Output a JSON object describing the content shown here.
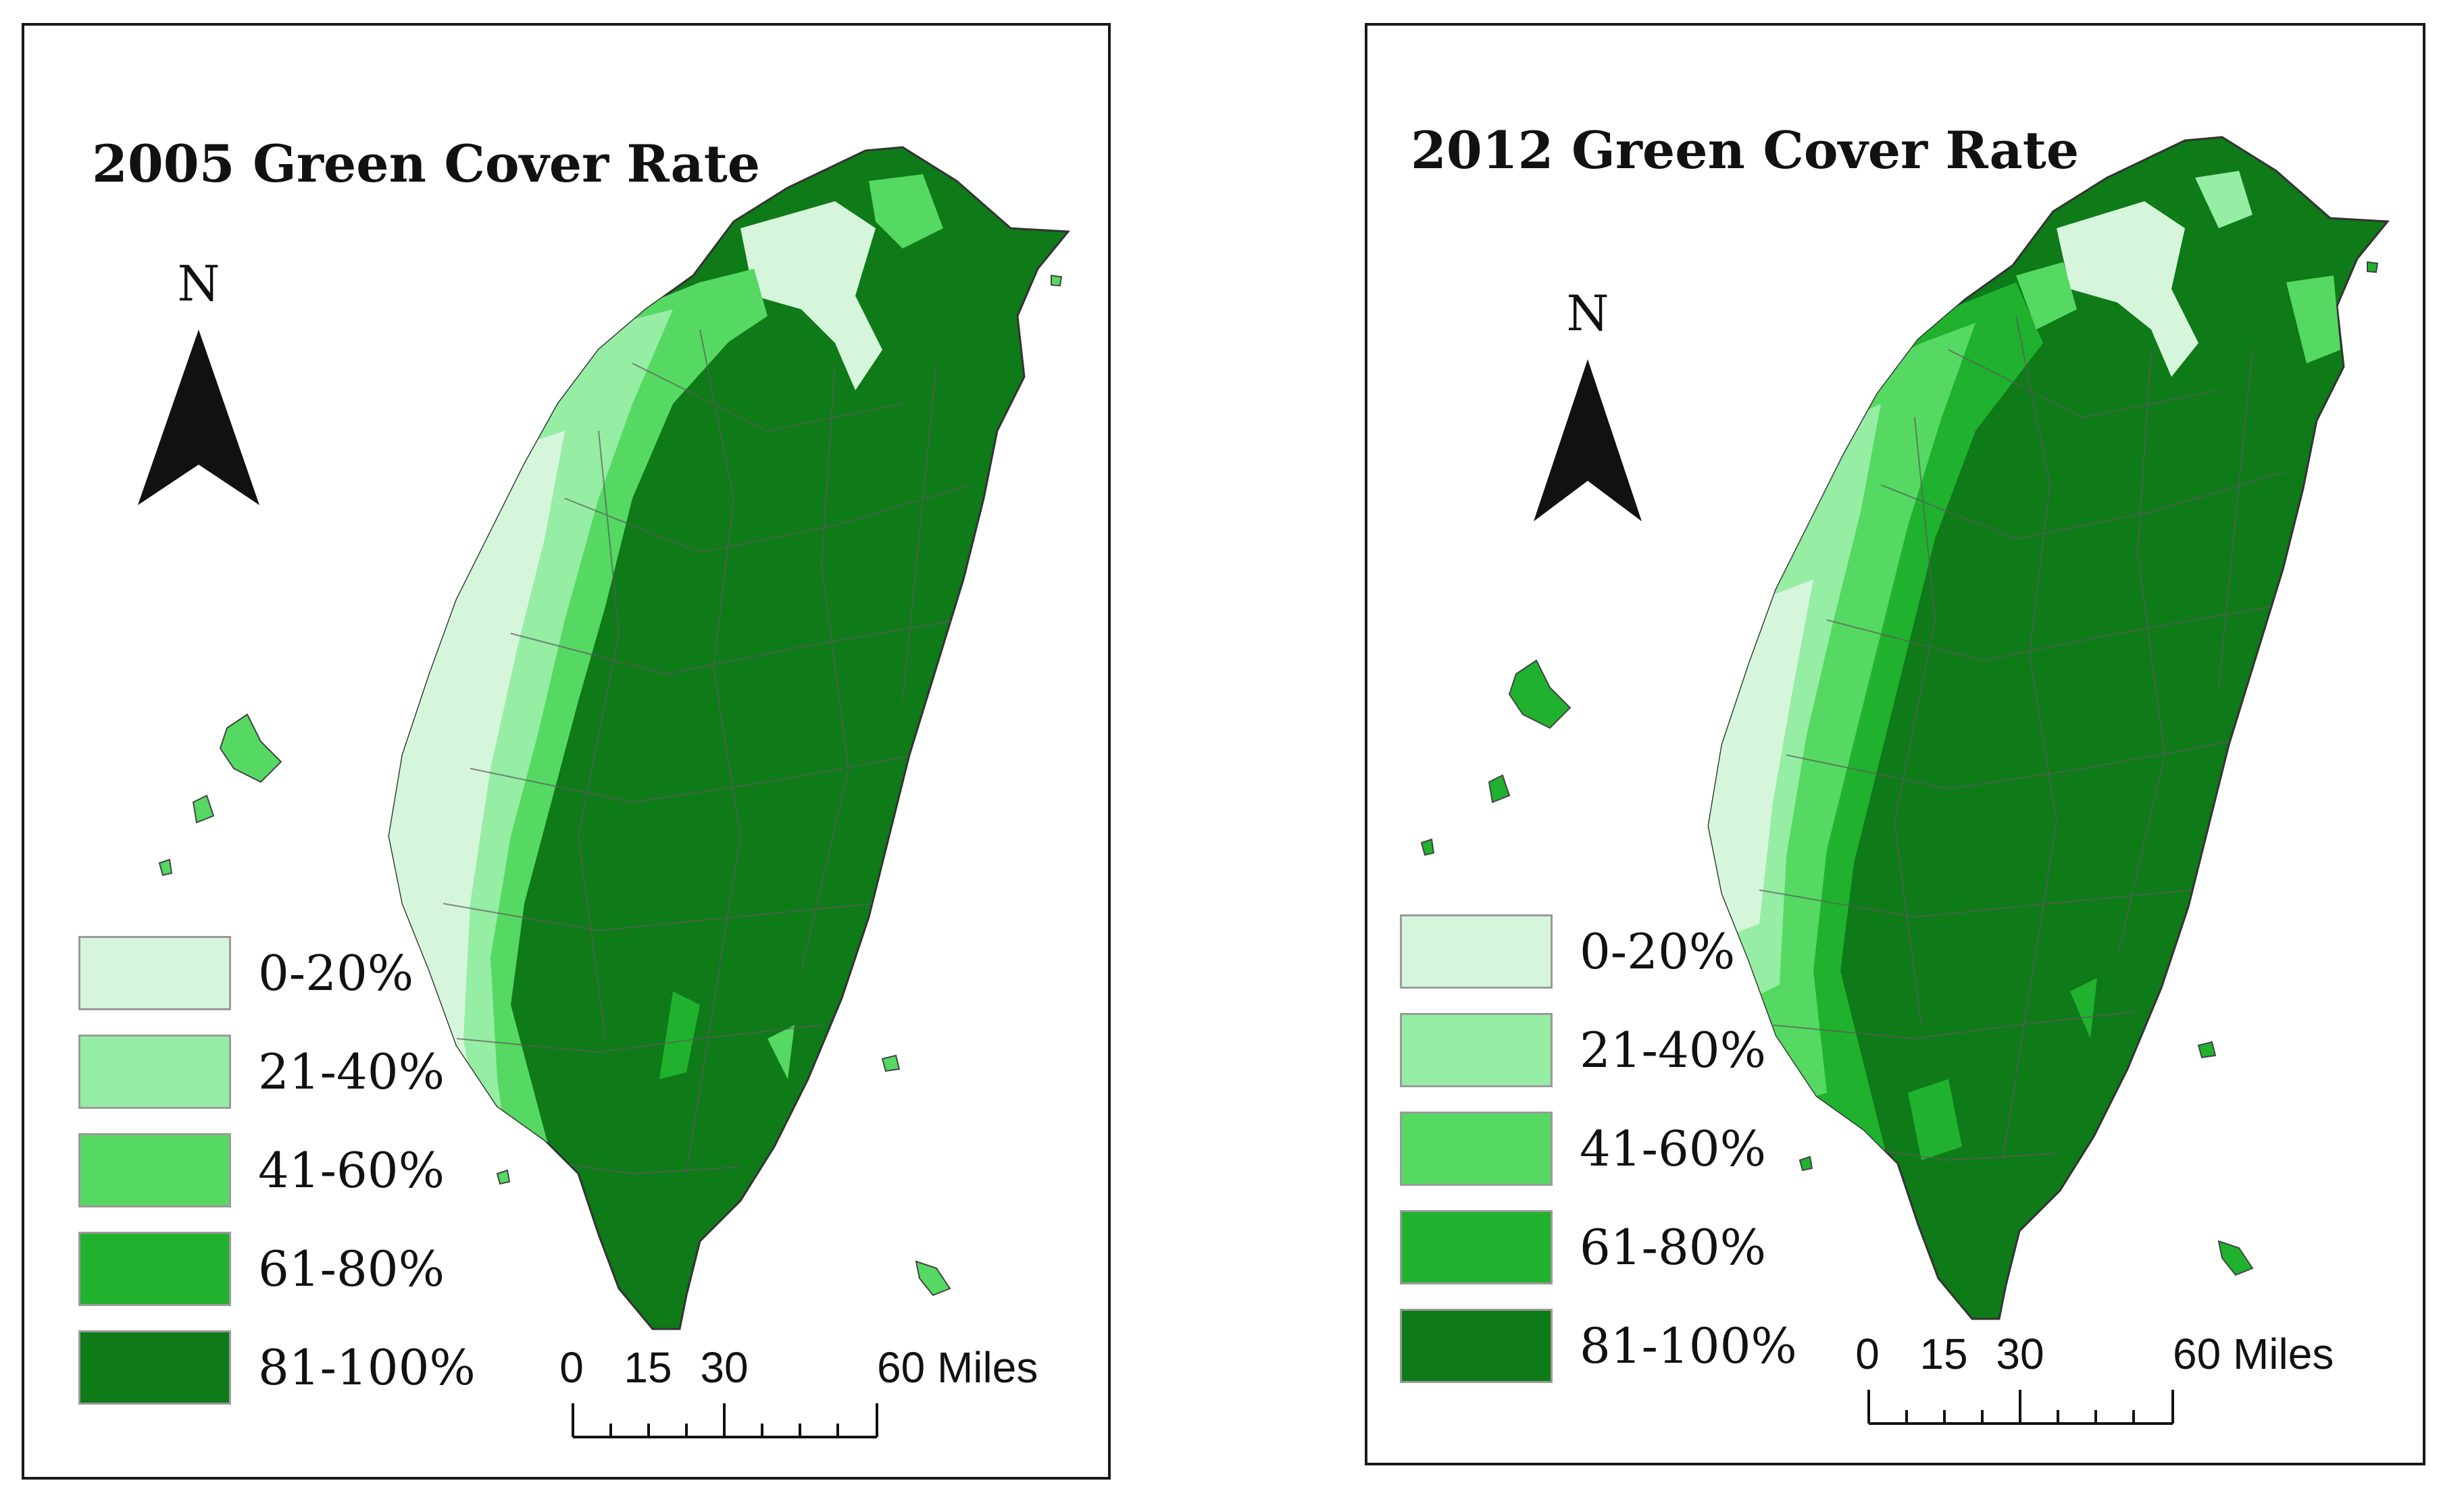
{
  "panels": [
    {
      "title": "2005 Green Cover Rate",
      "north_label": "N",
      "scale": {
        "ticks": [
          "0",
          "15",
          "30",
          "60 Miles"
        ]
      }
    },
    {
      "title": "2012 Green Cover Rate",
      "north_label": "N",
      "scale": {
        "ticks": [
          "0",
          "15",
          "30",
          "60 Miles"
        ]
      }
    }
  ],
  "legend": [
    {
      "label": "0-20%",
      "color": "#d6f6dc"
    },
    {
      "label": "21-40%",
      "color": "#96eda4"
    },
    {
      "label": "41-60%",
      "color": "#55d962"
    },
    {
      "label": "61-80%",
      "color": "#20b22e"
    },
    {
      "label": "81-100%",
      "color": "#0e7a18"
    }
  ],
  "colors": {
    "border": "#1a1a1a",
    "district_line": "#5a5a5a"
  }
}
